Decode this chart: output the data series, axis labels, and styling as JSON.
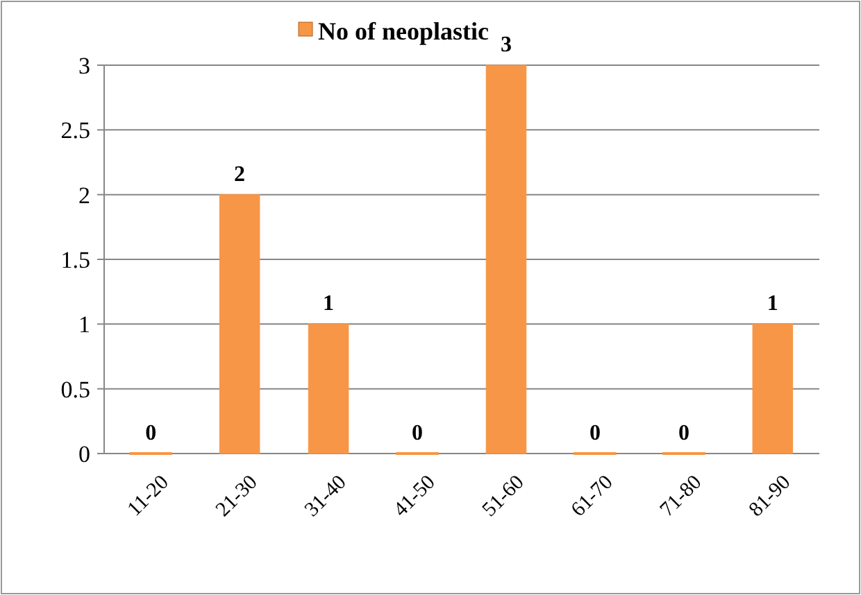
{
  "chart_data": {
    "type": "bar",
    "categories": [
      "11-20",
      "21-30",
      "31-40",
      "41-50",
      "51-60",
      "61-70",
      "71-80",
      "81-90"
    ],
    "series": [
      {
        "name": "No of neoplastic",
        "color": "#f79646",
        "values": [
          0,
          2,
          1,
          0,
          3,
          0,
          0,
          1
        ]
      }
    ],
    "ylim": [
      0,
      3
    ],
    "yticks": [
      0,
      0.5,
      1,
      1.5,
      2,
      2.5,
      3
    ],
    "grid": "y",
    "legend": "top",
    "data_labels": true
  }
}
